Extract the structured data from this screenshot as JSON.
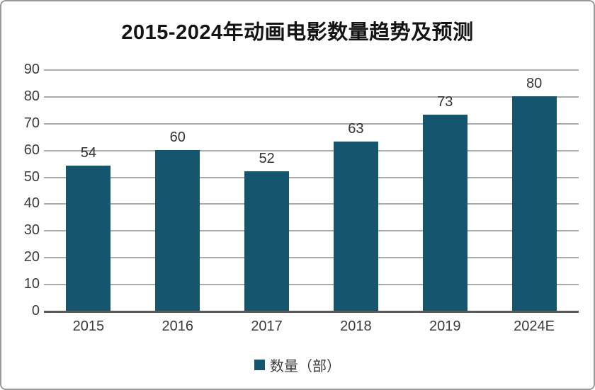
{
  "chart_data": {
    "type": "bar",
    "title": "2015-2024年动画电影数量趋势及预测",
    "categories": [
      "2015",
      "2016",
      "2017",
      "2018",
      "2019",
      "2024E"
    ],
    "values": [
      54,
      60,
      52,
      63,
      73,
      80
    ],
    "series_name": "数量（部）",
    "legend_label": "数量（部）",
    "xlabel": "",
    "ylabel": "",
    "ylim": [
      0,
      90
    ],
    "ytick_step": 10,
    "grid": true,
    "legend_position": "bottom",
    "bar_color": "#15556E",
    "grid_color": "#ababab",
    "axis_color": "#595959",
    "title_color": "#141414",
    "label_color": "#3b3b3b"
  }
}
